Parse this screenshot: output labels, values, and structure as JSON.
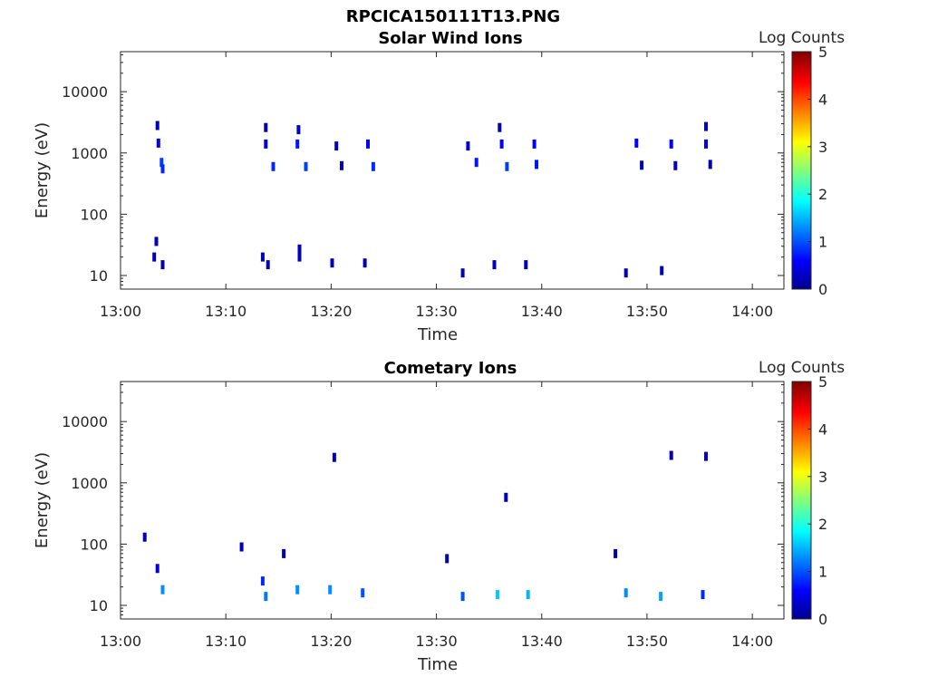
{
  "figure_title": "RPCICA150111T13.PNG",
  "chart_data": [
    {
      "type": "heatmap",
      "title": "Solar Wind Ions",
      "xlabel": "Time",
      "ylabel": "Energy (eV)",
      "x_range": [
        "13:00",
        "14:03"
      ],
      "y_range": [
        6,
        45000
      ],
      "y_scale": "log",
      "x_ticks": [
        "13:00",
        "13:10",
        "13:20",
        "13:30",
        "13:40",
        "13:50",
        "14:00"
      ],
      "y_ticks": [
        "10",
        "100",
        "1000",
        "10000"
      ],
      "colorbar": {
        "label": "Log Counts",
        "range": [
          0,
          5
        ],
        "ticks": [
          "0",
          "1",
          "2",
          "3",
          "4",
          "5"
        ],
        "colormap": "jet"
      },
      "cells": [
        {
          "t": "13:03.5",
          "e": 2800,
          "v": 0.2
        },
        {
          "t": "13:03.6",
          "e": 1450,
          "v": 0.5
        },
        {
          "t": "13:03.9",
          "e": 700,
          "v": 0.9
        },
        {
          "t": "13:04.0",
          "e": 550,
          "v": 0.8
        },
        {
          "t": "13:03.4",
          "e": 36,
          "v": 0.2
        },
        {
          "t": "13:03.2",
          "e": 20,
          "v": 0.2
        },
        {
          "t": "13:04.0",
          "e": 15,
          "v": 0.2
        },
        {
          "t": "13:13.8",
          "e": 2600,
          "v": 0.2
        },
        {
          "t": "13:13.8",
          "e": 1400,
          "v": 0.5
        },
        {
          "t": "13:14.5",
          "e": 600,
          "v": 0.8
        },
        {
          "t": "13:13.5",
          "e": 20,
          "v": 0.2
        },
        {
          "t": "13:14.0",
          "e": 15,
          "v": 0.2
        },
        {
          "t": "13:16.9",
          "e": 2400,
          "v": 0.3
        },
        {
          "t": "13:16.8",
          "e": 1400,
          "v": 0.7
        },
        {
          "t": "13:17.6",
          "e": 600,
          "v": 0.9
        },
        {
          "t": "13:17.0",
          "e": 27,
          "v": 0.2
        },
        {
          "t": "13:17.0",
          "e": 20,
          "v": 0.3
        },
        {
          "t": "13:20.5",
          "e": 1300,
          "v": 0.3
        },
        {
          "t": "13:21.0",
          "e": 620,
          "v": 0.3
        },
        {
          "t": "13:20.1",
          "e": 16,
          "v": 0.2
        },
        {
          "t": "13:23.5",
          "e": 1400,
          "v": 0.6
        },
        {
          "t": "13:24.0",
          "e": 600,
          "v": 0.8
        },
        {
          "t": "13:23.2",
          "e": 16,
          "v": 0.2
        },
        {
          "t": "13:32.5",
          "e": 11,
          "v": 0.2
        },
        {
          "t": "13:33.0",
          "e": 1300,
          "v": 0.3
        },
        {
          "t": "13:33.8",
          "e": 700,
          "v": 0.7
        },
        {
          "t": "13:36.0",
          "e": 2600,
          "v": 0.2
        },
        {
          "t": "13:36.2",
          "e": 1400,
          "v": 0.6
        },
        {
          "t": "13:36.7",
          "e": 600,
          "v": 0.9
        },
        {
          "t": "13:35.5",
          "e": 15,
          "v": 0.3
        },
        {
          "t": "13:39.3",
          "e": 1400,
          "v": 0.6
        },
        {
          "t": "13:39.5",
          "e": 650,
          "v": 0.7
        },
        {
          "t": "13:38.5",
          "e": 15,
          "v": 0.2
        },
        {
          "t": "13:48.0",
          "e": 11,
          "v": 0.2
        },
        {
          "t": "13:49.0",
          "e": 1450,
          "v": 0.6
        },
        {
          "t": "13:49.5",
          "e": 630,
          "v": 0.2
        },
        {
          "t": "13:52.3",
          "e": 1400,
          "v": 0.6
        },
        {
          "t": "13:52.7",
          "e": 620,
          "v": 0.3
        },
        {
          "t": "13:51.4",
          "e": 12,
          "v": 0.2
        },
        {
          "t": "13:55.6",
          "e": 2700,
          "v": 0.4
        },
        {
          "t": "13:55.6",
          "e": 1400,
          "v": 0.6
        },
        {
          "t": "13:56.0",
          "e": 650,
          "v": 0.2
        }
      ]
    },
    {
      "type": "heatmap",
      "title": "Cometary Ions",
      "xlabel": "Time",
      "ylabel": "Energy (eV)",
      "x_range": [
        "13:00",
        "14:03"
      ],
      "y_range": [
        6,
        45000
      ],
      "y_scale": "log",
      "x_ticks": [
        "13:00",
        "13:10",
        "13:20",
        "13:30",
        "13:40",
        "13:50",
        "14:00"
      ],
      "y_ticks": [
        "10",
        "100",
        "1000",
        "10000"
      ],
      "colorbar": {
        "label": "Log Counts",
        "range": [
          0,
          5
        ],
        "ticks": [
          "0",
          "1",
          "2",
          "3",
          "4",
          "5"
        ],
        "colormap": "jet"
      },
      "cells": [
        {
          "t": "13:02.3",
          "e": 130,
          "v": 0.2
        },
        {
          "t": "13:03.5",
          "e": 40,
          "v": 0.4
        },
        {
          "t": "13:04.0",
          "e": 18,
          "v": 1.3
        },
        {
          "t": "13:11.5",
          "e": 90,
          "v": 0.2
        },
        {
          "t": "13:13.5",
          "e": 25,
          "v": 0.8
        },
        {
          "t": "13:13.8",
          "e": 14,
          "v": 1.2
        },
        {
          "t": "13:15.5",
          "e": 70,
          "v": 0.3
        },
        {
          "t": "13:16.8",
          "e": 18,
          "v": 1.3
        },
        {
          "t": "13:20.3",
          "e": 2600,
          "v": 0.2
        },
        {
          "t": "13:19.9",
          "e": 18,
          "v": 1.3
        },
        {
          "t": "13:23.0",
          "e": 16,
          "v": 1.0
        },
        {
          "t": "13:31.0",
          "e": 58,
          "v": 0.2
        },
        {
          "t": "13:32.5",
          "e": 14,
          "v": 1.0
        },
        {
          "t": "13:35.8",
          "e": 15,
          "v": 1.6
        },
        {
          "t": "13:36.6",
          "e": 580,
          "v": 0.2
        },
        {
          "t": "13:38.7",
          "e": 15,
          "v": 1.5
        },
        {
          "t": "13:47.0",
          "e": 70,
          "v": 0.2
        },
        {
          "t": "13:48.0",
          "e": 16,
          "v": 1.3
        },
        {
          "t": "13:51.3",
          "e": 14,
          "v": 1.4
        },
        {
          "t": "13:52.3",
          "e": 2800,
          "v": 0.2
        },
        {
          "t": "13:55.3",
          "e": 15,
          "v": 0.8
        },
        {
          "t": "13:55.6",
          "e": 2700,
          "v": 0.4
        }
      ]
    }
  ]
}
